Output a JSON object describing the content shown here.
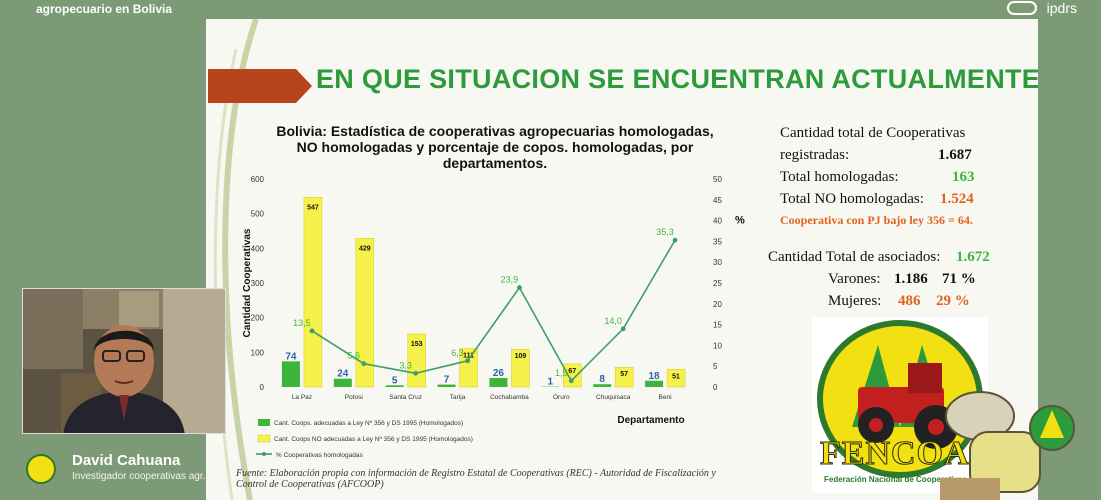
{
  "header": {
    "event_title": "agropecuario en Bolivia",
    "logo_text": "ipdrs"
  },
  "slide": {
    "title": "EN QUE SITUACION SE ENCUENTRAN ACTUALMENTE?",
    "chart_title_lines": [
      "Bolivia: Estadística de cooperativas agropecuarias homologadas,",
      "NO homologadas y porcentaje de copos. homologadas, por",
      "departamentos."
    ],
    "stats": {
      "total_label_1": "Cantidad total de Cooperativas",
      "total_label_2": "registradas:",
      "total_value": "1.687",
      "homologadas_label": "Total homologadas:",
      "homologadas_value": "163",
      "no_homologadas_label": "Total NO homologadas:",
      "no_homologadas_value": "1.524",
      "pj_note": "Cooperativa con PJ bajo ley 356 = 64.",
      "asociados_label": "Cantidad Total de asociados:",
      "asociados_value": "1.672",
      "varones_label": "Varones:",
      "varones_value": "1.186",
      "varones_pct": "71 %",
      "mujeres_label": "Mujeres:",
      "mujeres_value": "486",
      "mujeres_pct": "29 %"
    },
    "fenco": {
      "name": "FENCOA",
      "subtitle": "Federación Nacional de Cooperativas"
    },
    "footnote": "Fuente: Elaboración propia con información de Registro Estatal de Cooperativas (REC) - Autoridad de Fiscalización y Control de Cooperativas (AFCOOP)"
  },
  "chart_data": {
    "type": "bar",
    "title": "Bolivia: Estadística de cooperativas agropecuarias homologadas, NO homologadas y porcentaje de copos. homologadas, por departamentos.",
    "xlabel": "Departamento",
    "ylabel": "Cantidad Cooperativas",
    "y2label": "%",
    "ylim": [
      0,
      600
    ],
    "y2lim": [
      0,
      50
    ],
    "yticks": [
      "0",
      "100",
      "200",
      "300",
      "400",
      "500",
      "600"
    ],
    "y2ticks": [
      "0",
      "5",
      "10",
      "15",
      "20",
      "25",
      "30",
      "35",
      "40",
      "45",
      "50"
    ],
    "categories": [
      "La Paz",
      "Potosi",
      "Santa Cruz",
      "Tarija",
      "Cochabamba",
      "Oruro",
      "Chuquisaca",
      "Beni"
    ],
    "series": [
      {
        "name": "Cant. Coops. adecuadas a Ley Nº 356 y DS 1995 (Homologados)",
        "type": "bar",
        "color": "#3db53d",
        "values": [
          74,
          24,
          5,
          7,
          26,
          1,
          8,
          18
        ]
      },
      {
        "name": "Cant. Coops NO adecuadas a Ley Nº 356 y DS 1995 (Homologados)",
        "type": "bar",
        "color": "#f5f04a",
        "values": [
          547,
          429,
          153,
          111,
          109,
          67,
          57,
          51
        ]
      },
      {
        "name": "% Cooperativas homologadas",
        "type": "line",
        "color": "#3e9e6a",
        "axis": "right",
        "values": [
          13.5,
          5.6,
          3.3,
          6.3,
          23.9,
          1.5,
          14.0,
          35.3
        ],
        "labels": [
          "13,5",
          "5,6",
          "3,3",
          "6,3",
          "23,9",
          "1,5",
          "14,0",
          "35,3"
        ]
      }
    ],
    "legend_position": "bottom-left",
    "grid": false
  },
  "presenter": {
    "name": "David Cahuana",
    "role": "Investigador cooperativas agr..."
  }
}
